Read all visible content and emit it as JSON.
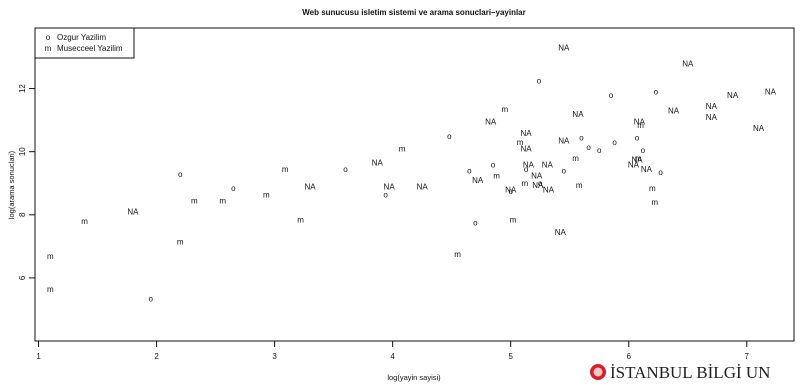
{
  "chart_data": {
    "type": "scatter",
    "title": "Web sunucusu isletim sistemi ve arama sonuclari–yayinlar",
    "xlabel": "log(yayin sayisi)",
    "ylabel": "log(arama sonuclari)",
    "xlim": [
      0.97,
      7.4
    ],
    "ylim": [
      4.0,
      13.92
    ],
    "x_ticks": [
      1,
      2,
      3,
      4,
      5,
      6,
      7
    ],
    "y_ticks": [
      6,
      8,
      10,
      12
    ],
    "grid": false,
    "legend_position": "top-left",
    "series": [
      {
        "name": "Ozgur Yazilim",
        "marker": "o",
        "points": [
          {
            "x": 1.95,
            "y": 5.35
          },
          {
            "x": 2.2,
            "y": 9.3
          },
          {
            "x": 2.65,
            "y": 8.85
          },
          {
            "x": 3.6,
            "y": 9.45
          },
          {
            "x": 3.94,
            "y": 8.65
          },
          {
            "x": 4.48,
            "y": 10.5
          },
          {
            "x": 4.65,
            "y": 9.4
          },
          {
            "x": 4.7,
            "y": 7.75
          },
          {
            "x": 4.85,
            "y": 9.6
          },
          {
            "x": 5.0,
            "y": 8.75
          },
          {
            "x": 5.13,
            "y": 9.45
          },
          {
            "x": 5.24,
            "y": 12.25
          },
          {
            "x": 5.25,
            "y": 9.0
          },
          {
            "x": 5.45,
            "y": 9.4
          },
          {
            "x": 5.6,
            "y": 10.45
          },
          {
            "x": 5.66,
            "y": 10.15
          },
          {
            "x": 5.75,
            "y": 10.05
          },
          {
            "x": 5.85,
            "y": 11.8
          },
          {
            "x": 5.88,
            "y": 10.3
          },
          {
            "x": 6.07,
            "y": 10.45
          },
          {
            "x": 6.12,
            "y": 10.05
          },
          {
            "x": 6.23,
            "y": 11.9
          },
          {
            "x": 6.27,
            "y": 9.35
          }
        ]
      },
      {
        "name": "Musecceel Yazilim",
        "marker": "m",
        "points": [
          {
            "x": 1.1,
            "y": 6.7
          },
          {
            "x": 1.1,
            "y": 5.65
          },
          {
            "x": 1.39,
            "y": 7.8
          },
          {
            "x": 2.2,
            "y": 7.15
          },
          {
            "x": 2.32,
            "y": 8.45
          },
          {
            "x": 2.56,
            "y": 8.45
          },
          {
            "x": 2.93,
            "y": 8.65
          },
          {
            "x": 3.09,
            "y": 9.45
          },
          {
            "x": 3.22,
            "y": 7.85
          },
          {
            "x": 4.08,
            "y": 10.1
          },
          {
            "x": 4.55,
            "y": 6.75
          },
          {
            "x": 4.88,
            "y": 9.25
          },
          {
            "x": 4.95,
            "y": 11.35
          },
          {
            "x": 5.02,
            "y": 7.85
          },
          {
            "x": 5.08,
            "y": 10.3
          },
          {
            "x": 5.12,
            "y": 9.0
          },
          {
            "x": 5.55,
            "y": 9.8
          },
          {
            "x": 5.58,
            "y": 8.95
          },
          {
            "x": 6.08,
            "y": 9.8
          },
          {
            "x": 6.1,
            "y": 10.85
          },
          {
            "x": 6.2,
            "y": 8.85
          },
          {
            "x": 6.22,
            "y": 8.4
          }
        ]
      },
      {
        "name": "NA",
        "marker": "NA",
        "points": [
          {
            "x": 1.8,
            "y": 8.1
          },
          {
            "x": 3.3,
            "y": 8.9
          },
          {
            "x": 3.87,
            "y": 9.65
          },
          {
            "x": 3.97,
            "y": 8.9
          },
          {
            "x": 4.25,
            "y": 8.9
          },
          {
            "x": 4.72,
            "y": 9.1
          },
          {
            "x": 4.83,
            "y": 10.95
          },
          {
            "x": 5.0,
            "y": 8.8
          },
          {
            "x": 5.13,
            "y": 10.6
          },
          {
            "x": 5.13,
            "y": 10.1
          },
          {
            "x": 5.15,
            "y": 9.6
          },
          {
            "x": 5.22,
            "y": 9.25
          },
          {
            "x": 5.23,
            "y": 8.95
          },
          {
            "x": 5.31,
            "y": 9.6
          },
          {
            "x": 5.32,
            "y": 8.8
          },
          {
            "x": 5.42,
            "y": 7.45
          },
          {
            "x": 5.45,
            "y": 13.3
          },
          {
            "x": 5.45,
            "y": 10.35
          },
          {
            "x": 5.57,
            "y": 11.2
          },
          {
            "x": 6.04,
            "y": 9.6
          },
          {
            "x": 6.07,
            "y": 9.75
          },
          {
            "x": 6.09,
            "y": 10.95
          },
          {
            "x": 6.15,
            "y": 9.45
          },
          {
            "x": 6.5,
            "y": 12.8
          },
          {
            "x": 6.7,
            "y": 11.1
          },
          {
            "x": 6.7,
            "y": 11.45
          },
          {
            "x": 6.88,
            "y": 11.8
          },
          {
            "x": 7.1,
            "y": 10.75
          },
          {
            "x": 7.2,
            "y": 11.9
          },
          {
            "x": 6.38,
            "y": 11.3
          }
        ]
      }
    ],
    "legend": [
      {
        "symbol": "o",
        "label": "Ozgur Yazilim"
      },
      {
        "symbol": "m",
        "label": "Musecceel Yazilim"
      }
    ]
  },
  "watermark": {
    "text": "İSTANBUL BİLGİ UN",
    "color": "#d62027"
  }
}
